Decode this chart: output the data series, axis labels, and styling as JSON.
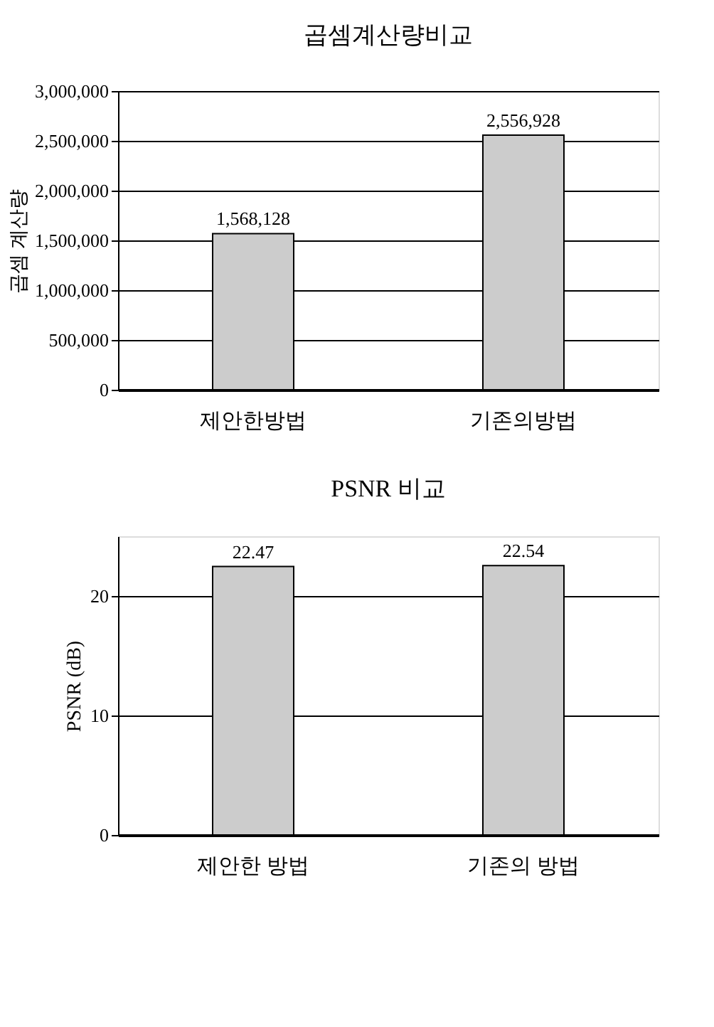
{
  "chart_data": [
    {
      "type": "bar",
      "title": "곱셈계산량비교",
      "ylabel": "곱셈 계산량",
      "categories": [
        "제안한방법",
        "기존의방법"
      ],
      "values": [
        1568128,
        2556928
      ],
      "value_labels": [
        "1,568,128",
        "2,556,928"
      ],
      "color": "#cccccc",
      "ylim": [
        0,
        3000000
      ],
      "yticks": [
        0,
        {
          "value": 500000,
          "label": "500,000"
        },
        {
          "value": 1000000,
          "label": "1,000,000"
        },
        {
          "value": 1500000,
          "label": "1,500,000"
        },
        {
          "value": 2000000,
          "label": "2,000,000"
        },
        {
          "value": 2500000,
          "label": "2,500,000"
        },
        {
          "value": 3000000,
          "label": "3,000,000"
        }
      ],
      "grid": "y"
    },
    {
      "type": "bar",
      "title": "PSNR 비교",
      "ylabel": "PSNR (dB)",
      "categories": [
        "제안한 방법",
        "기존의 방법"
      ],
      "values": [
        22.47,
        22.54
      ],
      "value_labels": [
        "22.47",
        "22.54"
      ],
      "color": "#cccccc",
      "ylim": [
        0,
        25
      ],
      "yticks": [
        0,
        10,
        20
      ],
      "grid": "y"
    }
  ]
}
